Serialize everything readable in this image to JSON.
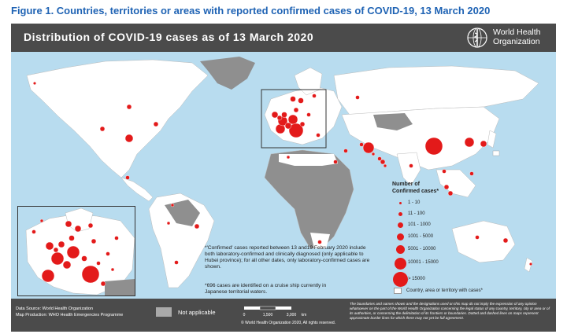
{
  "figure_title": "Figure 1. Countries, territories or areas with reported confirmed cases of COVID-19, 13 March 2020",
  "map": {
    "title": "Distribution of COVID-19  cases as of 13 March 2020",
    "org_name_line1": "World Health",
    "org_name_line2": "Organization"
  },
  "legend": {
    "title_line1": "Number of",
    "title_line2": "Confirmed cases*",
    "classes": [
      {
        "label": "1 - 10"
      },
      {
        "label": "11 - 100"
      },
      {
        "label": "101 - 1000"
      },
      {
        "label": "1001 - 5000"
      },
      {
        "label": "5001 - 10000"
      },
      {
        "label": "10001 - 15000"
      },
      {
        "label": "> 15000"
      }
    ],
    "ship_label": "Country, area or territory with cases*"
  },
  "notes": {
    "confirmed": "*'Confirmed' cases reported between 13 and19 February 2020 include both laboratory-confirmed and clinically diagnosed (only applicable to Hubei province); for all other dates, only laboratory-confirmed cases are shown.",
    "cruise": "*696 cases are identified on a cruise ship currently in Japanese territorial waters."
  },
  "footer": {
    "data_source": "Data Source: World Health Organization",
    "map_production": "Map Production: WHO Health Emergencies Programme",
    "not_applicable": "Not applicable",
    "scale_0": "0",
    "scale_1": "1,500",
    "scale_2": "3,000",
    "scale_unit": "km",
    "copyright": "© World Health Organization 2020, All rights reserved.",
    "disclaimer": "The boundaries and names shown and the designations used on this map do not imply the expression of any opinion whatsoever on the part of the World Health Organization concerning the legal status of any country, territory, city or area or of its authorities, or concerning the delimitation of its frontiers or boundaries. Dotted and dashed lines on maps represent approximate border lines for which there may not yet be full agreement."
  },
  "colors": {
    "ocean": "#b8dcef",
    "affected": "#ffffff",
    "not_affected": "#8f8f8f",
    "case_bubble": "#e31a1a",
    "header": "#4b4b4b"
  },
  "icons": {
    "logo": "who-emblem-icon",
    "marker": "case-bubble-icon"
  }
}
